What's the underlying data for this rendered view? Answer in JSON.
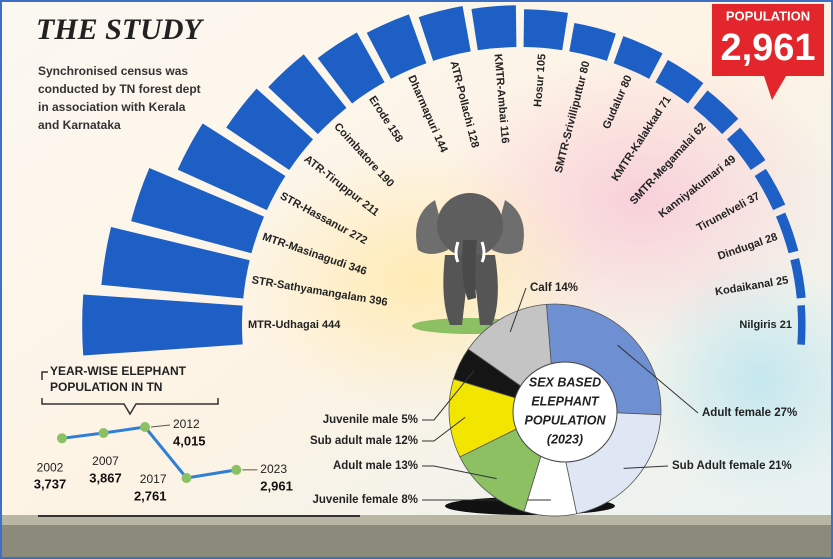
{
  "title": "THE STUDY",
  "subtitle": [
    "Synchronised census was",
    "conducted by TN forest dept",
    "in association with Kerala",
    "and Karnataka"
  ],
  "callout": {
    "label": "POPULATION",
    "value": "2,961"
  },
  "chart_data": [
    {
      "type": "radial_bar",
      "categories": [
        "MTR-Udhagai",
        "STR-Sathyamangalam",
        "MTR-Masinagudi",
        "STR-Hassanur",
        "ATR-Tiruppur",
        "Coimbatore",
        "Erode",
        "Dharmapuri",
        "ATR-Pollachi",
        "KMTR-Ambai",
        "Hosur",
        "SMTR-Srivilliputtur",
        "Gudalur",
        "KMTR-Kalakkad",
        "SMTR-Megamalai",
        "Kanniyakumari",
        "Tirunelveli",
        "Dindugal",
        "Kodaikanal",
        "Nilgiris"
      ],
      "values": [
        444,
        396,
        346,
        272,
        211,
        190,
        158,
        144,
        128,
        116,
        105,
        80,
        80,
        71,
        62,
        49,
        37,
        28,
        25,
        21
      ],
      "color": "#1d5fc4"
    },
    {
      "type": "line",
      "title": [
        "YEAR-WISE ELEPHANT",
        "POPULATION IN TN"
      ],
      "x": [
        2002,
        2007,
        2012,
        2017,
        2023
      ],
      "values": [
        3737,
        3867,
        4015,
        2761,
        2961
      ],
      "value_labels": [
        "3,737",
        "3,867",
        "4,015",
        "2,761",
        "2,961"
      ],
      "color": "#2f7fd6",
      "marker_color": "#8cc063"
    },
    {
      "type": "pie",
      "title": [
        "SEX BASED",
        "ELEPHANT",
        "POPULATION",
        "(2023)"
      ],
      "categories": [
        "Calf",
        "Adult female",
        "Sub Adult female",
        "Juvenile female",
        "Adult male",
        "Sub adult male",
        "Juvenile male"
      ],
      "values": [
        14,
        27,
        21,
        8,
        13,
        12,
        5
      ],
      "value_labels": [
        "14%",
        "27%",
        "21%",
        "8%",
        "13%",
        "12%",
        "5%"
      ],
      "colors": [
        "#c4c4c4",
        "#6f8fd3",
        "#dfe7f5",
        "#ffffff",
        "#8cc063",
        "#f2e600",
        "#151515"
      ]
    }
  ]
}
